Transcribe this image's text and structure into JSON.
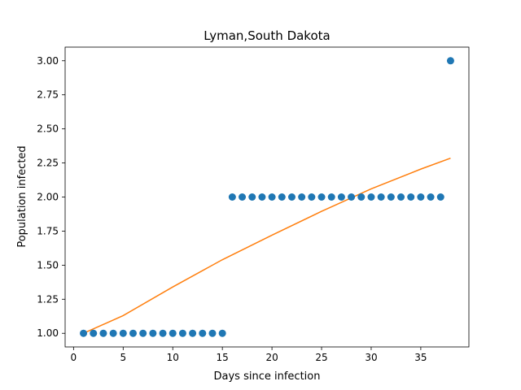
{
  "chart_data": {
    "type": "scatter",
    "title": "Lyman,South Dakota",
    "xlabel": "Days since infection",
    "ylabel": "Population infected",
    "xlim": [
      -0.85,
      39.85
    ],
    "ylim": [
      0.9,
      3.1
    ],
    "xticks": [
      0,
      5,
      10,
      15,
      20,
      25,
      30,
      35
    ],
    "xtick_labels": [
      "0",
      "5",
      "10",
      "15",
      "20",
      "25",
      "30",
      "35"
    ],
    "yticks": [
      1.0,
      1.25,
      1.5,
      1.75,
      2.0,
      2.25,
      2.5,
      2.75,
      3.0
    ],
    "ytick_labels": [
      "1.00",
      "1.25",
      "1.50",
      "1.75",
      "2.00",
      "2.25",
      "2.50",
      "2.75",
      "3.00"
    ],
    "grid": false,
    "series": [
      {
        "kind": "scatter",
        "color": "#1f77b4",
        "x": [
          1,
          2,
          3,
          4,
          5,
          6,
          7,
          8,
          9,
          10,
          11,
          12,
          13,
          14,
          15,
          16,
          17,
          18,
          19,
          20,
          21,
          22,
          23,
          24,
          25,
          26,
          27,
          28,
          29,
          30,
          31,
          32,
          33,
          34,
          35,
          36,
          37,
          38
        ],
        "y": [
          1,
          1,
          1,
          1,
          1,
          1,
          1,
          1,
          1,
          1,
          1,
          1,
          1,
          1,
          1,
          2,
          2,
          2,
          2,
          2,
          2,
          2,
          2,
          2,
          2,
          2,
          2,
          2,
          2,
          2,
          2,
          2,
          2,
          2,
          2,
          2,
          2,
          3
        ]
      },
      {
        "kind": "line",
        "color": "#ff7f0e",
        "x": [
          1,
          5,
          10,
          15,
          20,
          25,
          30,
          35,
          38
        ],
        "y": [
          1.0,
          1.13,
          1.34,
          1.54,
          1.72,
          1.895,
          2.06,
          2.205,
          2.285
        ]
      }
    ]
  }
}
